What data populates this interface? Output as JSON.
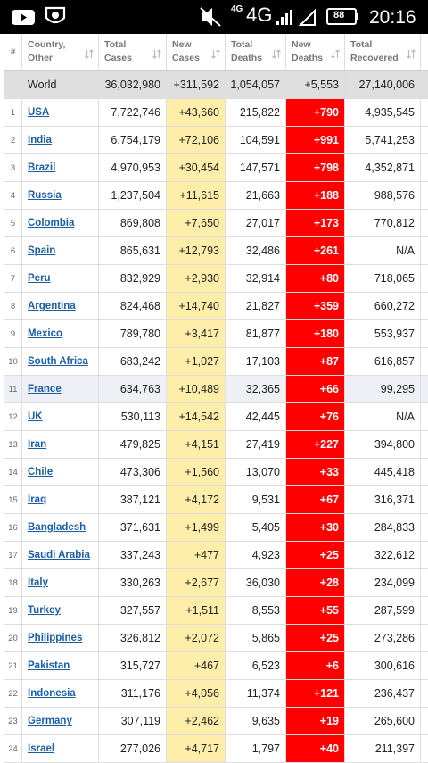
{
  "status_bar": {
    "network_small": "4G",
    "network": "4G",
    "battery": "88",
    "time": "20:16"
  },
  "table": {
    "headers": [
      [
        "#"
      ],
      [
        "Country,",
        "Other"
      ],
      [
        "Total",
        "Cases"
      ],
      [
        "New",
        "Cases"
      ],
      [
        "Total",
        "Deaths"
      ],
      [
        "New",
        "Deaths"
      ],
      [
        "Total",
        "Recovered"
      ]
    ],
    "world": [
      "World",
      "36,032,980",
      "+311,592",
      "1,054,057",
      "+5,553",
      "27,140,006"
    ],
    "rows": [
      [
        "1",
        "USA",
        "7,722,746",
        "+43,660",
        "215,822",
        "+790",
        "4,935,545"
      ],
      [
        "2",
        "India",
        "6,754,179",
        "+72,106",
        "104,591",
        "+991",
        "5,741,253"
      ],
      [
        "3",
        "Brazil",
        "4,970,953",
        "+30,454",
        "147,571",
        "+798",
        "4,352,871"
      ],
      [
        "4",
        "Russia",
        "1,237,504",
        "+11,615",
        "21,663",
        "+188",
        "988,576"
      ],
      [
        "5",
        "Colombia",
        "869,808",
        "+7,650",
        "27,017",
        "+173",
        "770,812"
      ],
      [
        "6",
        "Spain",
        "865,631",
        "+12,793",
        "32,486",
        "+261",
        "N/A"
      ],
      [
        "7",
        "Peru",
        "832,929",
        "+2,930",
        "32,914",
        "+80",
        "718,065"
      ],
      [
        "8",
        "Argentina",
        "824,468",
        "+14,740",
        "21,827",
        "+359",
        "660,272"
      ],
      [
        "9",
        "Mexico",
        "789,780",
        "+3,417",
        "81,877",
        "+180",
        "553,937"
      ],
      [
        "10",
        "South Africa",
        "683,242",
        "+1,027",
        "17,103",
        "+87",
        "616,857"
      ],
      [
        "11",
        "France",
        "634,763",
        "+10,489",
        "32,365",
        "+66",
        "99,295"
      ],
      [
        "12",
        "UK",
        "530,113",
        "+14,542",
        "42,445",
        "+76",
        "N/A"
      ],
      [
        "13",
        "Iran",
        "479,825",
        "+4,151",
        "27,419",
        "+227",
        "394,800"
      ],
      [
        "14",
        "Chile",
        "473,306",
        "+1,560",
        "13,070",
        "+33",
        "445,418"
      ],
      [
        "15",
        "Iraq",
        "387,121",
        "+4,172",
        "9,531",
        "+67",
        "316,371"
      ],
      [
        "16",
        "Bangladesh",
        "371,631",
        "+1,499",
        "5,405",
        "+30",
        "284,833"
      ],
      [
        "17",
        "Saudi Arabia",
        "337,243",
        "+477",
        "4,923",
        "+25",
        "322,612"
      ],
      [
        "18",
        "Italy",
        "330,263",
        "+2,677",
        "36,030",
        "+28",
        "234,099"
      ],
      [
        "19",
        "Turkey",
        "327,557",
        "+1,511",
        "8,553",
        "+55",
        "287,599"
      ],
      [
        "20",
        "Philippines",
        "326,812",
        "+2,072",
        "5,865",
        "+25",
        "273,286"
      ],
      [
        "21",
        "Pakistan",
        "315,727",
        "+467",
        "6,523",
        "+6",
        "300,616"
      ],
      [
        "22",
        "Indonesia",
        "311,176",
        "+4,056",
        "11,374",
        "+121",
        "236,437"
      ],
      [
        "23",
        "Germany",
        "307,119",
        "+2,462",
        "9,635",
        "+19",
        "265,600"
      ],
      [
        "24",
        "Israel",
        "277,026",
        "+4,717",
        "1,797",
        "+40",
        "211,397"
      ]
    ]
  }
}
